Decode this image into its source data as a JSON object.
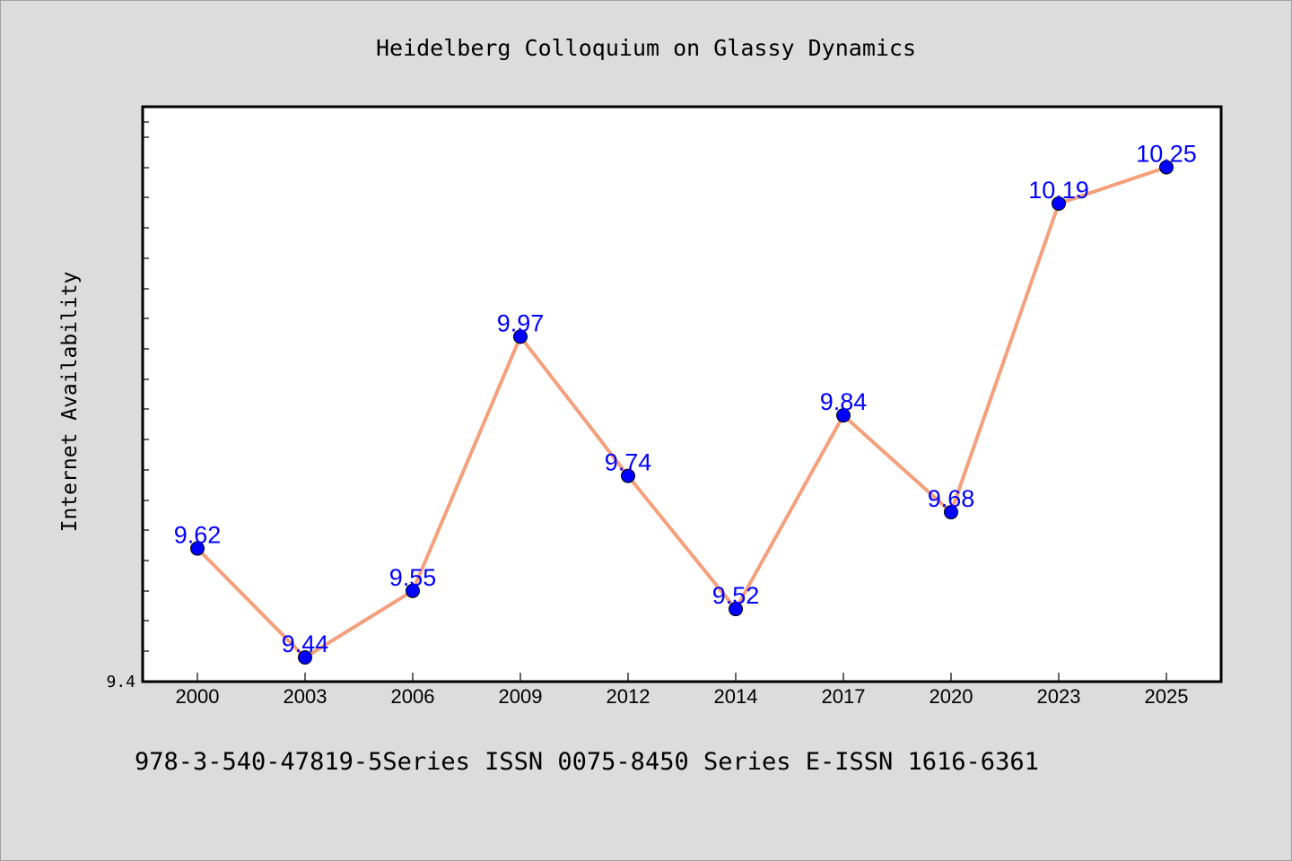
{
  "chart_data": {
    "type": "line",
    "title": "Heidelberg Colloquium on Glassy Dynamics",
    "xlabel": "",
    "ylabel": "Internet Availability",
    "categories": [
      "2000",
      "2003",
      "2006",
      "2009",
      "2012",
      "2014",
      "2017",
      "2020",
      "2023",
      "2025"
    ],
    "series": [
      {
        "values": [
          9.62,
          9.44,
          9.55,
          9.97,
          9.74,
          9.52,
          9.84,
          9.68,
          10.19,
          10.25
        ],
        "labels": [
          "9.62",
          "9.44",
          "9.55",
          "9.97",
          "9.74",
          "9.52",
          "9.84",
          "9.68",
          "10.19",
          "10.25"
        ],
        "line_color": "#f4a07c",
        "marker_color": "#0000ff",
        "label_color": "#0000ff"
      }
    ],
    "y_tick_labels": [
      "9.4"
    ],
    "ylim": [
      9.4,
      10.35
    ],
    "grid": false,
    "legend": "none"
  },
  "footer": {
    "text": "978-3-540-47819-5Series ISSN 0075-8450 Series E-ISSN 1616-6361"
  },
  "colors": {
    "background": "#dcdcdc",
    "plot_background": "#ffffff"
  }
}
